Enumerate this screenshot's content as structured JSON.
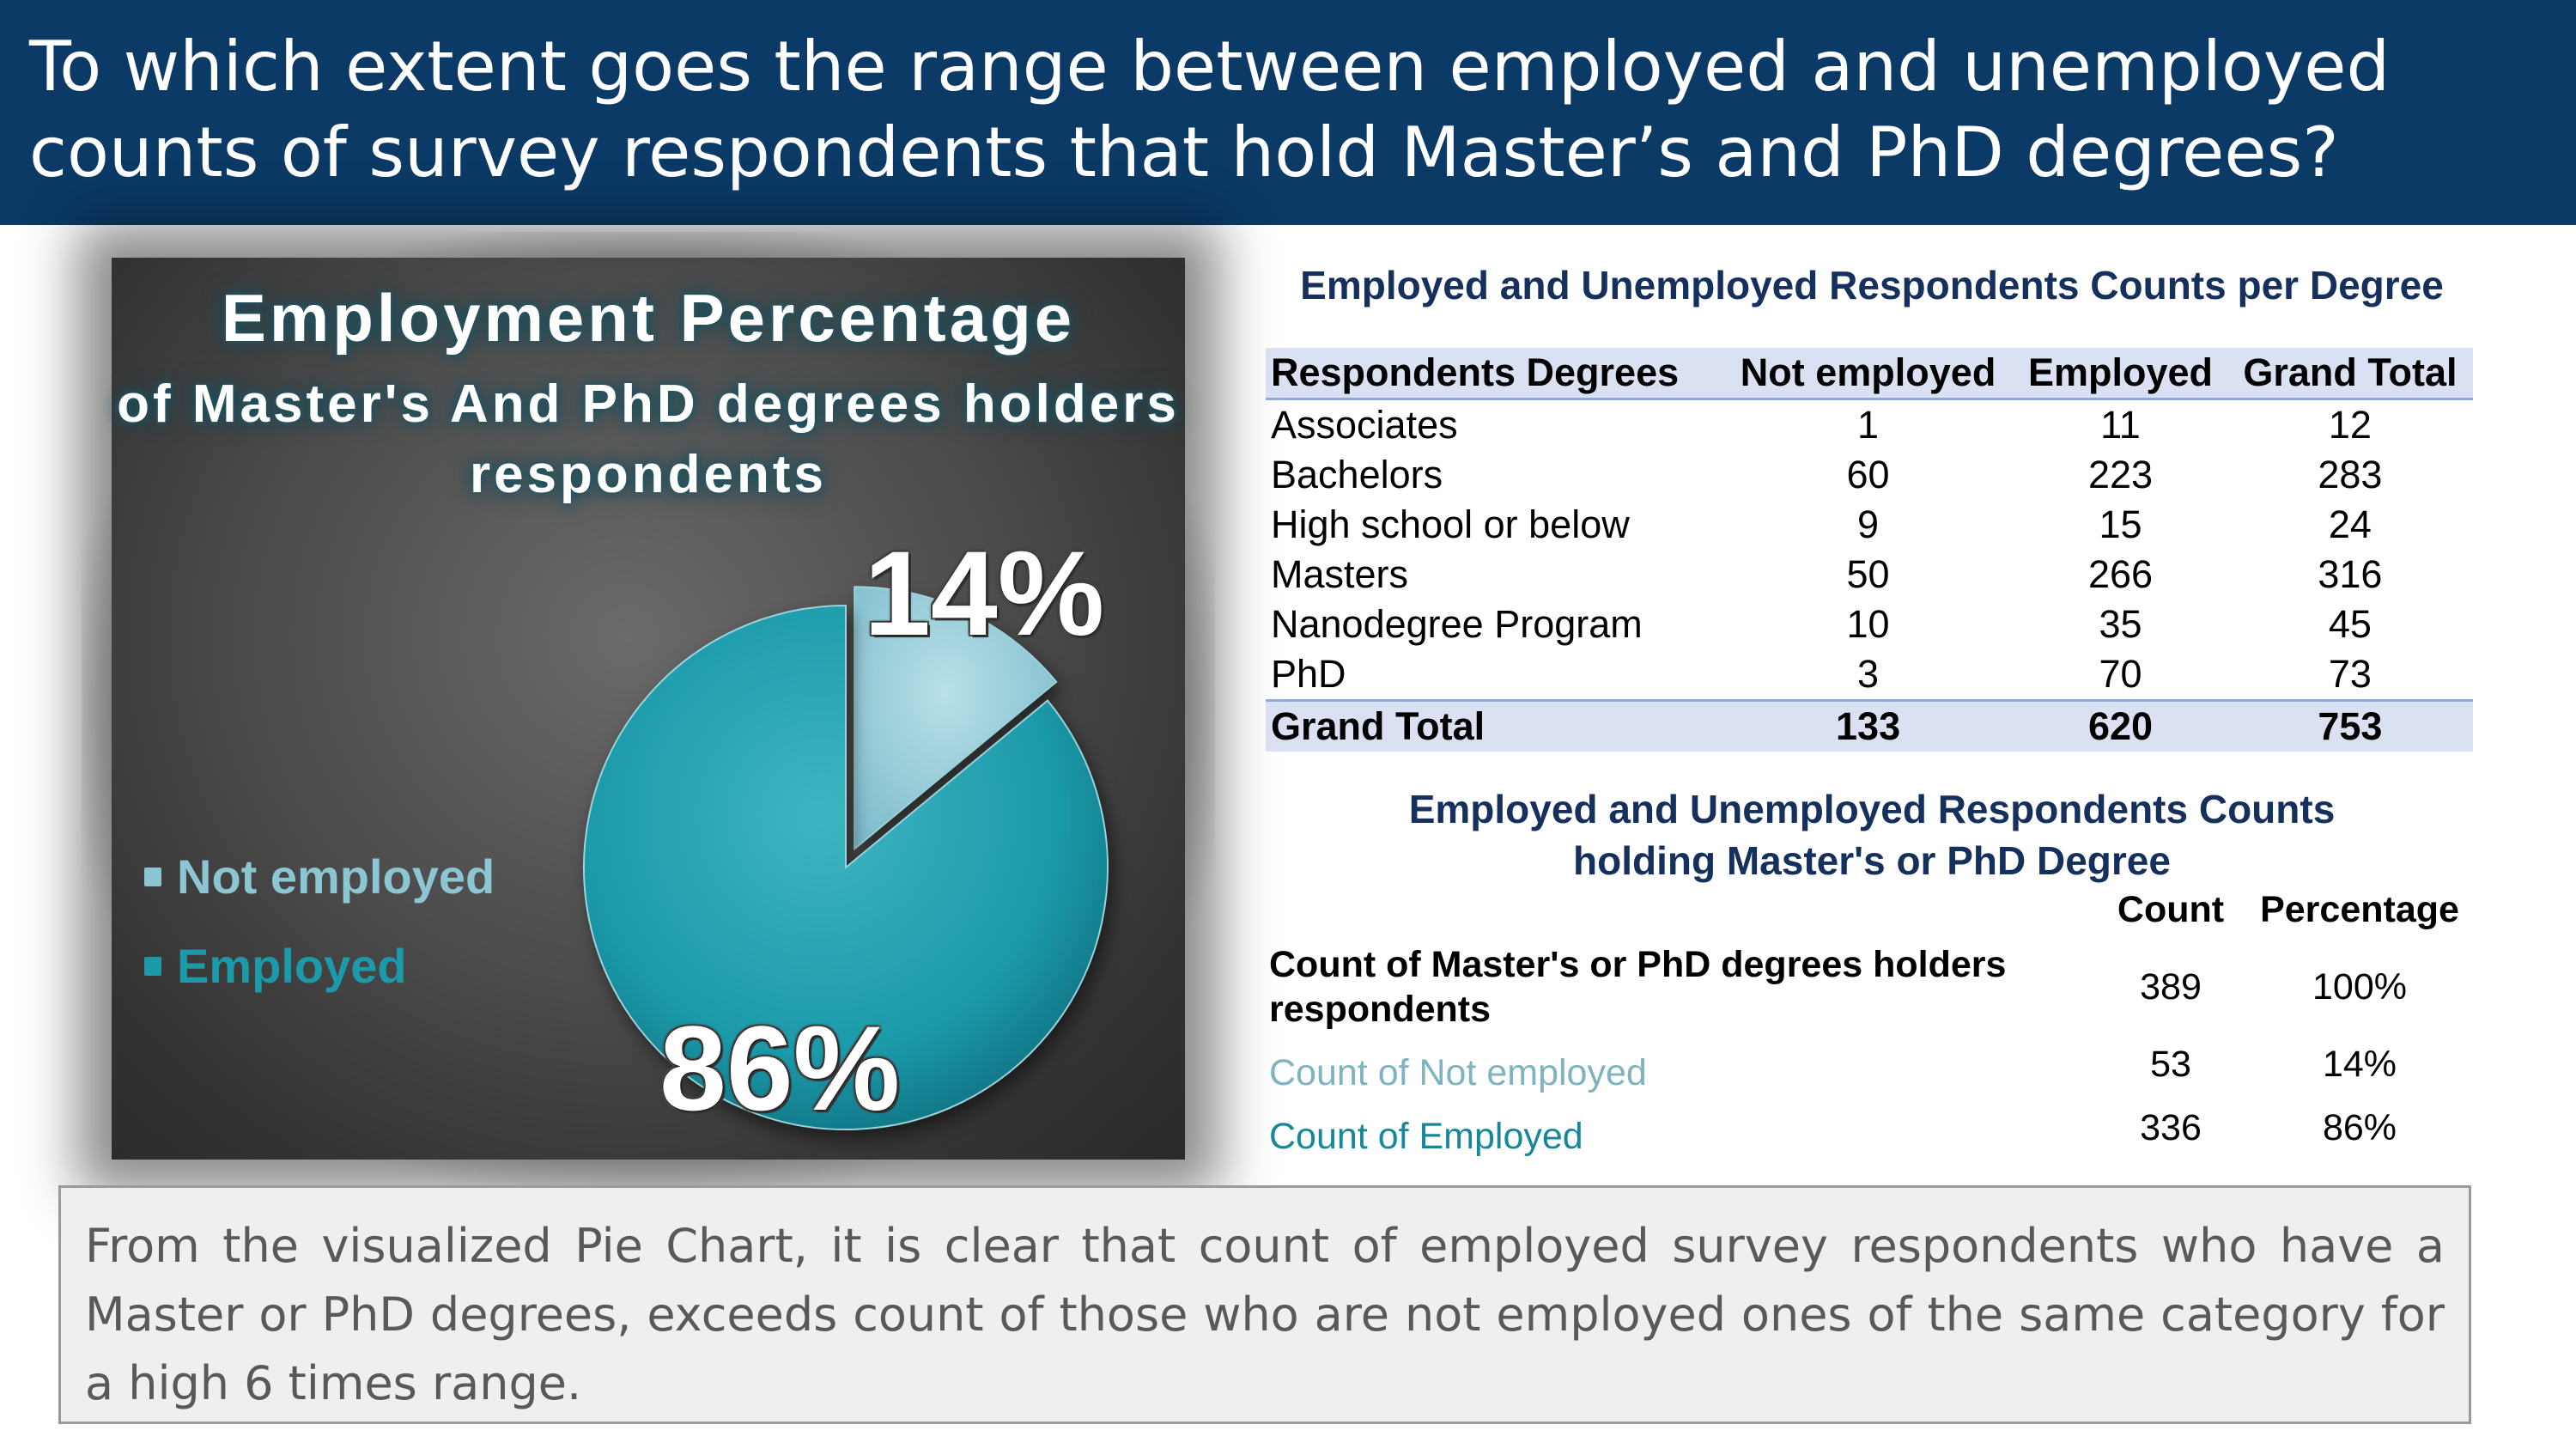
{
  "header": {
    "title": "To which extent goes the range between employed and unemployed counts of survey respondents that hold Master’s and PhD degrees?"
  },
  "chart_data": {
    "type": "pie",
    "title": "Employment Percentage",
    "subtitle": "of Master's And PhD degrees holders respondents",
    "slices": [
      {
        "name": "Not employed",
        "value": 14,
        "label": "14%",
        "color": "#8cc6d2"
      },
      {
        "name": "Employed",
        "value": 86,
        "label": "86%",
        "color": "#1b9aaa"
      }
    ],
    "legend_position": "left"
  },
  "degrees_table": {
    "title": "Employed and Unemployed Respondents Counts per Degree",
    "headers": [
      "Respondents Degrees",
      "Not employed",
      "Employed",
      "Grand Total"
    ],
    "rows": [
      [
        "Associates",
        "1",
        "11",
        "12"
      ],
      [
        "Bachelors",
        "60",
        "223",
        "283"
      ],
      [
        "High school or below",
        "9",
        "15",
        "24"
      ],
      [
        "Masters",
        "50",
        "266",
        "316"
      ],
      [
        "Nanodegree Program",
        "10",
        "35",
        "45"
      ],
      [
        "PhD",
        "3",
        "70",
        "73"
      ]
    ],
    "total": [
      "Grand Total",
      "133",
      "620",
      "753"
    ]
  },
  "summary": {
    "title_line1": "Employed and Unemployed Respondents Counts",
    "title_line2": "holding Master's or PhD Degree",
    "col_count": "Count",
    "col_percentage": "Percentage",
    "rows": [
      {
        "label": "Count of Master's or PhD degrees holders respondents",
        "count": "389",
        "percentage": "100%",
        "color": "#000000"
      },
      {
        "label": "Count of Not employed",
        "count": "53",
        "percentage": "14%",
        "color": "#7fb3bf"
      },
      {
        "label": "Count of Employed",
        "count": "336",
        "percentage": "86%",
        "color": "#17879a"
      }
    ]
  },
  "note": {
    "text": "From the visualized Pie Chart, it is clear that count of employed survey respondents who have a Master or PhD degrees, exceeds count of those who are not employed  ones of the same category for a high 6 times range."
  }
}
